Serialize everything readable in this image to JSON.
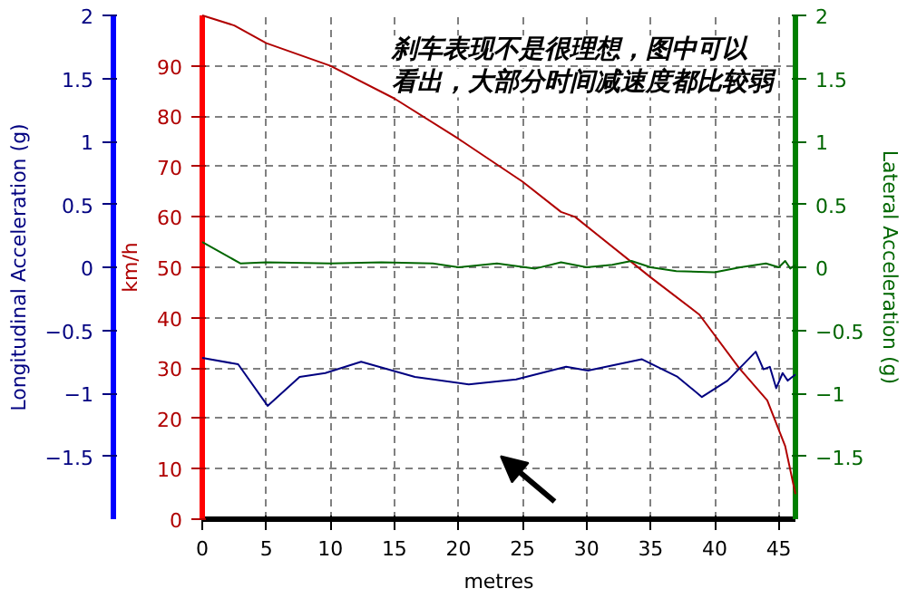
{
  "chart_data": {
    "type": "line",
    "xlabel": "metres",
    "ylabel": "km/h",
    "y3label": "Longitudinal Acceleration (g)",
    "y2label": "Lateral Acceleration (g)",
    "xlim": [
      0,
      46.3
    ],
    "xticks": [
      0,
      5,
      10,
      15,
      20,
      25,
      30,
      35,
      40,
      45
    ],
    "ylim": [
      0,
      100
    ],
    "yticks": [
      0,
      10,
      20,
      30,
      40,
      50,
      60,
      70,
      80,
      90
    ],
    "y2lim": [
      -2,
      2
    ],
    "y2ticks": [
      -1.5,
      -1,
      -0.5,
      0,
      0.5,
      1,
      1.5,
      2
    ],
    "y3lim": [
      -2,
      2
    ],
    "y3ticks": [
      -1.5,
      -1,
      -0.5,
      0,
      0.5,
      1,
      1.5,
      2
    ],
    "grid": true,
    "line_style": "solid",
    "annotations": [
      "刹车表现不是很理想，图中可以",
      "看出，大部分时间减速度都比较弱"
    ],
    "series": [
      {
        "color": "#b00000",
        "x": [
          0,
          2.5,
          5,
          10,
          15,
          20,
          25,
          28,
          29.1,
          35,
          38.8,
          41.9,
          44.1,
          45.5,
          46.3
        ],
        "values": [
          100,
          98,
          94.5,
          90,
          83.5,
          75.5,
          67,
          61,
          60,
          48,
          40.6,
          30,
          23.6,
          14.5,
          5
        ]
      },
      {
        "color": "#006600",
        "axis": "y2",
        "x": [
          0,
          3,
          5,
          10,
          14,
          18,
          20,
          23,
          26,
          28,
          30,
          32,
          33.5,
          35,
          37,
          40,
          42,
          44,
          45,
          45.5,
          45.9,
          46.3
        ],
        "values": [
          0.2,
          0.03,
          0.04,
          0.03,
          0.04,
          0.03,
          0.0,
          0.03,
          -0.01,
          0.04,
          0.0,
          0.02,
          0.05,
          0.0,
          -0.03,
          -0.04,
          0.0,
          0.03,
          0.0,
          0.05,
          -0.01,
          0.02
        ]
      },
      {
        "color": "#000080",
        "axis": "y3",
        "x": [
          0,
          2.8,
          5.1,
          7.6,
          9.6,
          12.4,
          16.6,
          20.8,
          24.5,
          28.4,
          30.1,
          34.3,
          37.1,
          39,
          41,
          43.2,
          43.8,
          44.3,
          44.8,
          45.3,
          45.7,
          46.3
        ],
        "values": [
          -0.72,
          -0.77,
          -1.1,
          -0.87,
          -0.84,
          -0.75,
          -0.87,
          -0.93,
          -0.89,
          -0.79,
          -0.82,
          -0.73,
          -0.87,
          -1.03,
          -0.9,
          -0.67,
          -0.81,
          -0.79,
          -0.96,
          -0.84,
          -0.9,
          -0.85
        ]
      }
    ]
  }
}
